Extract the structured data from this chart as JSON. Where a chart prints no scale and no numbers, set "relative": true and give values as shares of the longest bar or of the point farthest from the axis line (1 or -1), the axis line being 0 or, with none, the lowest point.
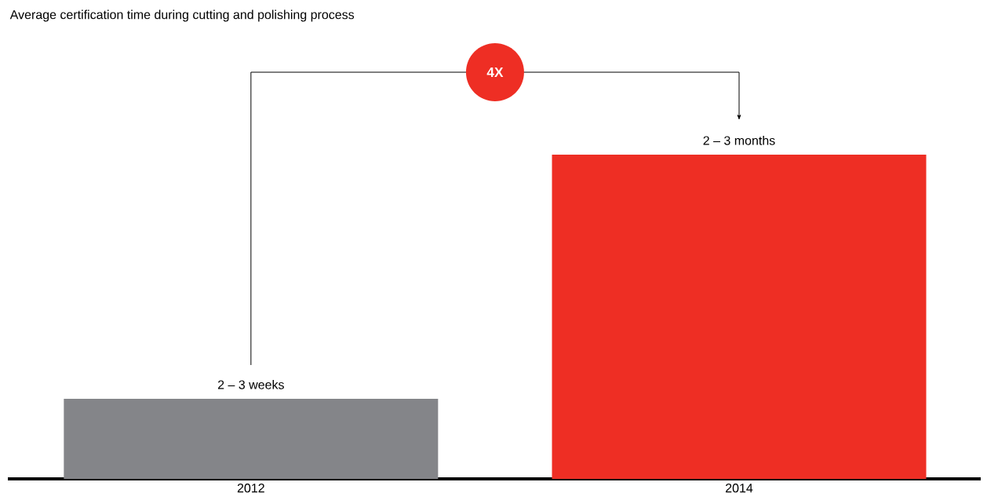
{
  "chart_data": {
    "type": "bar",
    "title": "Average certification time during cutting and polishing process",
    "categories": [
      "2012",
      "2014"
    ],
    "values": [
      0.247,
      1
    ],
    "colors": [
      "#848589",
      "#ee2e24"
    ],
    "relative": true,
    "annotations": [
      "4X",
      {
        "text": "2 – 3 weeks",
        "x": "2012",
        "y": 0.247
      },
      {
        "text": "2 – 3 months",
        "x": "2014",
        "y": 1
      }
    ]
  }
}
